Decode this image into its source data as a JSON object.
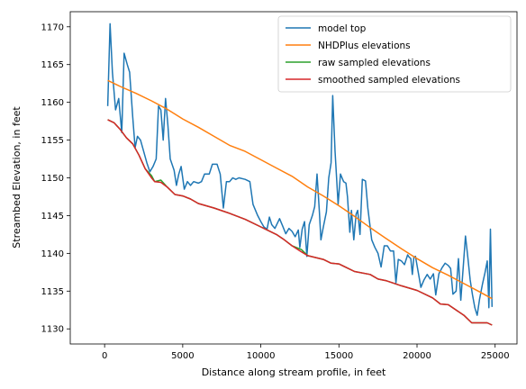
{
  "chart_data": {
    "type": "line",
    "xlabel": "Distance along stream profile, in feet",
    "ylabel": "Streambed Elevation, in feet",
    "xlim": [
      -2200,
      26400
    ],
    "ylim": [
      1128.0,
      1172.0
    ],
    "xticks": [
      0,
      5000,
      10000,
      15000,
      20000,
      25000
    ],
    "yticks": [
      1130,
      1135,
      1140,
      1145,
      1150,
      1155,
      1160,
      1165,
      1170
    ],
    "grid": false,
    "legend_position": "top-right",
    "series": [
      {
        "name": "model top",
        "color": "#1f77b4",
        "points": [
          [
            200,
            1159.5
          ],
          [
            350,
            1170.4
          ],
          [
            500,
            1164
          ],
          [
            700,
            1159
          ],
          [
            900,
            1160.5
          ],
          [
            1100,
            1156
          ],
          [
            1250,
            1166.5
          ],
          [
            1450,
            1165
          ],
          [
            1600,
            1164
          ],
          [
            1800,
            1158
          ],
          [
            1950,
            1154
          ],
          [
            2100,
            1155.5
          ],
          [
            2300,
            1155
          ],
          [
            2500,
            1153.5
          ],
          [
            2700,
            1152
          ],
          [
            2900,
            1150.8
          ],
          [
            3100,
            1151.5
          ],
          [
            3300,
            1152.5
          ],
          [
            3450,
            1159.5
          ],
          [
            3600,
            1159
          ],
          [
            3750,
            1155
          ],
          [
            3900,
            1160.5
          ],
          [
            4050,
            1157
          ],
          [
            4200,
            1152.5
          ],
          [
            4450,
            1151
          ],
          [
            4600,
            1149
          ],
          [
            4750,
            1150.5
          ],
          [
            4900,
            1151.5
          ],
          [
            5100,
            1148.5
          ],
          [
            5300,
            1149.5
          ],
          [
            5500,
            1149
          ],
          [
            5700,
            1149.5
          ],
          [
            6000,
            1149.3
          ],
          [
            6200,
            1149.5
          ],
          [
            6400,
            1150.5
          ],
          [
            6700,
            1150.5
          ],
          [
            6900,
            1151.8
          ],
          [
            7200,
            1151.8
          ],
          [
            7400,
            1150.5
          ],
          [
            7600,
            1146
          ],
          [
            7800,
            1149.5
          ],
          [
            8000,
            1149.5
          ],
          [
            8200,
            1150
          ],
          [
            8400,
            1149.8
          ],
          [
            8600,
            1150
          ],
          [
            9000,
            1149.8
          ],
          [
            9300,
            1149.5
          ],
          [
            9500,
            1146.5
          ],
          [
            9800,
            1145
          ],
          [
            10000,
            1144.2
          ],
          [
            10200,
            1143.5
          ],
          [
            10400,
            1143.2
          ],
          [
            10550,
            1144.8
          ],
          [
            10700,
            1143.8
          ],
          [
            10900,
            1143.3
          ],
          [
            11200,
            1144.6
          ],
          [
            11400,
            1143.6
          ],
          [
            11600,
            1142.6
          ],
          [
            11800,
            1143.3
          ],
          [
            12000,
            1142.9
          ],
          [
            12200,
            1142.2
          ],
          [
            12400,
            1143.1
          ],
          [
            12500,
            1140.8
          ],
          [
            12650,
            1143.2
          ],
          [
            12800,
            1144.2
          ],
          [
            12950,
            1139.6
          ],
          [
            13100,
            1143.8
          ],
          [
            13300,
            1145
          ],
          [
            13450,
            1146.2
          ],
          [
            13600,
            1150.5
          ],
          [
            13750,
            1145.5
          ],
          [
            13850,
            1141.8
          ],
          [
            14000,
            1143.5
          ],
          [
            14200,
            1145.5
          ],
          [
            14350,
            1150
          ],
          [
            14500,
            1152
          ],
          [
            14600,
            1160.9
          ],
          [
            14750,
            1153.5
          ],
          [
            14950,
            1146.5
          ],
          [
            15100,
            1150.5
          ],
          [
            15300,
            1149.5
          ],
          [
            15450,
            1149.3
          ],
          [
            15550,
            1147.5
          ],
          [
            15700,
            1142.8
          ],
          [
            15800,
            1145.7
          ],
          [
            15950,
            1141.8
          ],
          [
            16100,
            1145.2
          ],
          [
            16200,
            1145.7
          ],
          [
            16350,
            1142.5
          ],
          [
            16500,
            1149.8
          ],
          [
            16700,
            1149.6
          ],
          [
            16850,
            1146
          ],
          [
            17100,
            1141.8
          ],
          [
            17300,
            1140.8
          ],
          [
            17500,
            1140
          ],
          [
            17700,
            1138.2
          ],
          [
            17900,
            1141
          ],
          [
            18100,
            1141
          ],
          [
            18300,
            1140.3
          ],
          [
            18500,
            1140.3
          ],
          [
            18650,
            1136.1
          ],
          [
            18800,
            1139.2
          ],
          [
            19000,
            1139
          ],
          [
            19200,
            1138.5
          ],
          [
            19400,
            1139.8
          ],
          [
            19500,
            1139.5
          ],
          [
            19600,
            1139.3
          ],
          [
            19700,
            1137.2
          ],
          [
            19800,
            1139.5
          ],
          [
            19900,
            1139.6
          ],
          [
            20050,
            1137.8
          ],
          [
            20250,
            1135.5
          ],
          [
            20450,
            1136.5
          ],
          [
            20650,
            1137.2
          ],
          [
            20850,
            1136.6
          ],
          [
            21050,
            1137.3
          ],
          [
            21200,
            1134.5
          ],
          [
            21400,
            1137.3
          ],
          [
            21600,
            1138.1
          ],
          [
            21800,
            1138.7
          ],
          [
            22000,
            1138.4
          ],
          [
            22150,
            1138
          ],
          [
            22300,
            1134.6
          ],
          [
            22500,
            1135
          ],
          [
            22650,
            1139.3
          ],
          [
            22800,
            1133.8
          ],
          [
            22950,
            1138
          ],
          [
            23100,
            1142.3
          ],
          [
            23250,
            1139.5
          ],
          [
            23400,
            1136.5
          ],
          [
            23550,
            1134.5
          ],
          [
            23700,
            1132.8
          ],
          [
            23850,
            1131.8
          ],
          [
            24000,
            1133.9
          ],
          [
            24200,
            1136
          ],
          [
            24350,
            1137.4
          ],
          [
            24500,
            1139
          ],
          [
            24600,
            1132.8
          ],
          [
            24700,
            1143.2
          ],
          [
            24800,
            1132.9
          ]
        ]
      },
      {
        "name": "NHDPlus elevations",
        "color": "#ff7f0e",
        "points": [
          [
            200,
            1162.9
          ],
          [
            1000,
            1162.1
          ],
          [
            2000,
            1161.2
          ],
          [
            3000,
            1160.2
          ],
          [
            4000,
            1159.1
          ],
          [
            5000,
            1157.8
          ],
          [
            6000,
            1156.7
          ],
          [
            7000,
            1155.5
          ],
          [
            8000,
            1154.3
          ],
          [
            9000,
            1153.5
          ],
          [
            10000,
            1152.4
          ],
          [
            11000,
            1151.3
          ],
          [
            12000,
            1150.2
          ],
          [
            13000,
            1148.8
          ],
          [
            14000,
            1147.6
          ],
          [
            15000,
            1146.3
          ],
          [
            16000,
            1144.9
          ],
          [
            17000,
            1143.4
          ],
          [
            18000,
            1142
          ],
          [
            19000,
            1140.6
          ],
          [
            20000,
            1139.3
          ],
          [
            21000,
            1138.1
          ],
          [
            22000,
            1137.1
          ],
          [
            23000,
            1136
          ],
          [
            24000,
            1134.9
          ],
          [
            24800,
            1134
          ]
        ]
      },
      {
        "name": "raw sampled elevations",
        "color": "#2ca02c",
        "points": [
          [
            200,
            1157.7
          ],
          [
            600,
            1157.3
          ],
          [
            1000,
            1156.4
          ],
          [
            1400,
            1155.3
          ],
          [
            1800,
            1154.5
          ],
          [
            2200,
            1153
          ],
          [
            2600,
            1151.2
          ],
          [
            3000,
            1150.3
          ],
          [
            3200,
            1149.5
          ],
          [
            3600,
            1149.7
          ],
          [
            4000,
            1148.8
          ],
          [
            4500,
            1147.8
          ],
          [
            5000,
            1147.6
          ],
          [
            5500,
            1147.2
          ],
          [
            6000,
            1146.6
          ],
          [
            7000,
            1146
          ],
          [
            8000,
            1145.3
          ],
          [
            9000,
            1144.5
          ],
          [
            10000,
            1143.5
          ],
          [
            11000,
            1142.5
          ],
          [
            11500,
            1141.8
          ],
          [
            12000,
            1141
          ],
          [
            12600,
            1140.5
          ],
          [
            13000,
            1139.7
          ],
          [
            14000,
            1139.2
          ],
          [
            14500,
            1138.7
          ],
          [
            15000,
            1138.6
          ],
          [
            16000,
            1137.6
          ],
          [
            17000,
            1137.2
          ],
          [
            17500,
            1136.6
          ],
          [
            18000,
            1136.4
          ],
          [
            19000,
            1135.7
          ],
          [
            20000,
            1135.1
          ],
          [
            21000,
            1134.1
          ],
          [
            21500,
            1133.3
          ],
          [
            22000,
            1133.2
          ],
          [
            23000,
            1131.8
          ],
          [
            23500,
            1130.8
          ],
          [
            24000,
            1130.8
          ],
          [
            24500,
            1130.8
          ],
          [
            24800,
            1130.5
          ]
        ]
      },
      {
        "name": "smoothed sampled elevations",
        "color": "#d62728",
        "points": [
          [
            200,
            1157.7
          ],
          [
            600,
            1157.3
          ],
          [
            1000,
            1156.4
          ],
          [
            1400,
            1155.3
          ],
          [
            1800,
            1154.5
          ],
          [
            2200,
            1153
          ],
          [
            2600,
            1151.2
          ],
          [
            3000,
            1150
          ],
          [
            3200,
            1149.5
          ],
          [
            3600,
            1149.4
          ],
          [
            4000,
            1148.8
          ],
          [
            4500,
            1147.8
          ],
          [
            5000,
            1147.6
          ],
          [
            5500,
            1147.2
          ],
          [
            6000,
            1146.6
          ],
          [
            7000,
            1146
          ],
          [
            8000,
            1145.3
          ],
          [
            9000,
            1144.5
          ],
          [
            10000,
            1143.5
          ],
          [
            11000,
            1142.5
          ],
          [
            11500,
            1141.8
          ],
          [
            12000,
            1141
          ],
          [
            12600,
            1140.2
          ],
          [
            13000,
            1139.7
          ],
          [
            14000,
            1139.2
          ],
          [
            14500,
            1138.7
          ],
          [
            15000,
            1138.6
          ],
          [
            16000,
            1137.6
          ],
          [
            17000,
            1137.2
          ],
          [
            17500,
            1136.6
          ],
          [
            18000,
            1136.4
          ],
          [
            19000,
            1135.7
          ],
          [
            20000,
            1135.1
          ],
          [
            21000,
            1134.1
          ],
          [
            21500,
            1133.3
          ],
          [
            22000,
            1133.2
          ],
          [
            23000,
            1131.8
          ],
          [
            23500,
            1130.8
          ],
          [
            24000,
            1130.8
          ],
          [
            24500,
            1130.8
          ],
          [
            24800,
            1130.5
          ]
        ]
      }
    ]
  }
}
